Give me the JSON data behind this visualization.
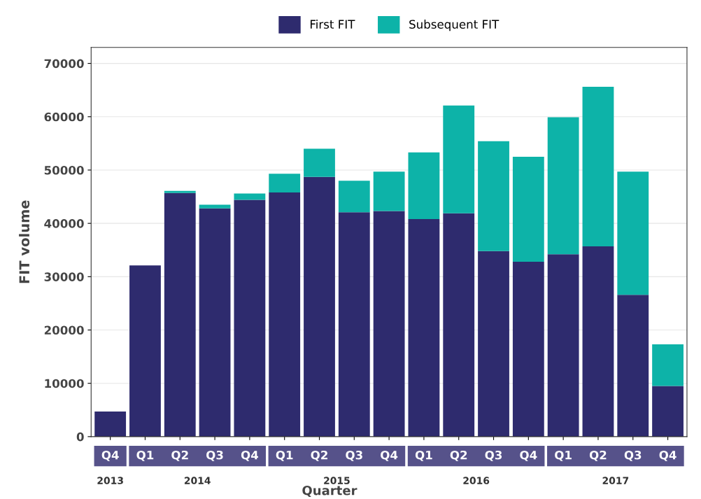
{
  "chart_data": {
    "type": "bar",
    "stacked": true,
    "xlabel": "Quarter",
    "ylabel": "FIT volume",
    "categories": [
      "Q4",
      "Q1",
      "Q2",
      "Q3",
      "Q4",
      "Q1",
      "Q2",
      "Q3",
      "Q4",
      "Q1",
      "Q2",
      "Q3",
      "Q4",
      "Q1",
      "Q2",
      "Q3",
      "Q4"
    ],
    "series": [
      {
        "name": "First FIT",
        "color": "#2e2b6e",
        "values": [
          4700,
          32100,
          45700,
          42800,
          44400,
          45800,
          48700,
          42100,
          42300,
          40800,
          41900,
          34800,
          32800,
          34200,
          35700,
          26600,
          9500
        ]
      },
      {
        "name": "Subsequent FIT",
        "color": "#0db3a8",
        "values": [
          0,
          0,
          400,
          700,
          1200,
          3500,
          5300,
          5900,
          7400,
          12500,
          20200,
          20600,
          19700,
          25700,
          29900,
          23100,
          7800
        ]
      }
    ],
    "annotations": [
      "2013",
      "2014",
      "2015",
      "2016",
      "2017"
    ],
    "ylim": [
      0,
      73000
    ],
    "yticks": [
      0,
      10000,
      20000,
      30000,
      40000,
      50000,
      60000,
      70000
    ],
    "grid": "y",
    "legend": "top"
  }
}
